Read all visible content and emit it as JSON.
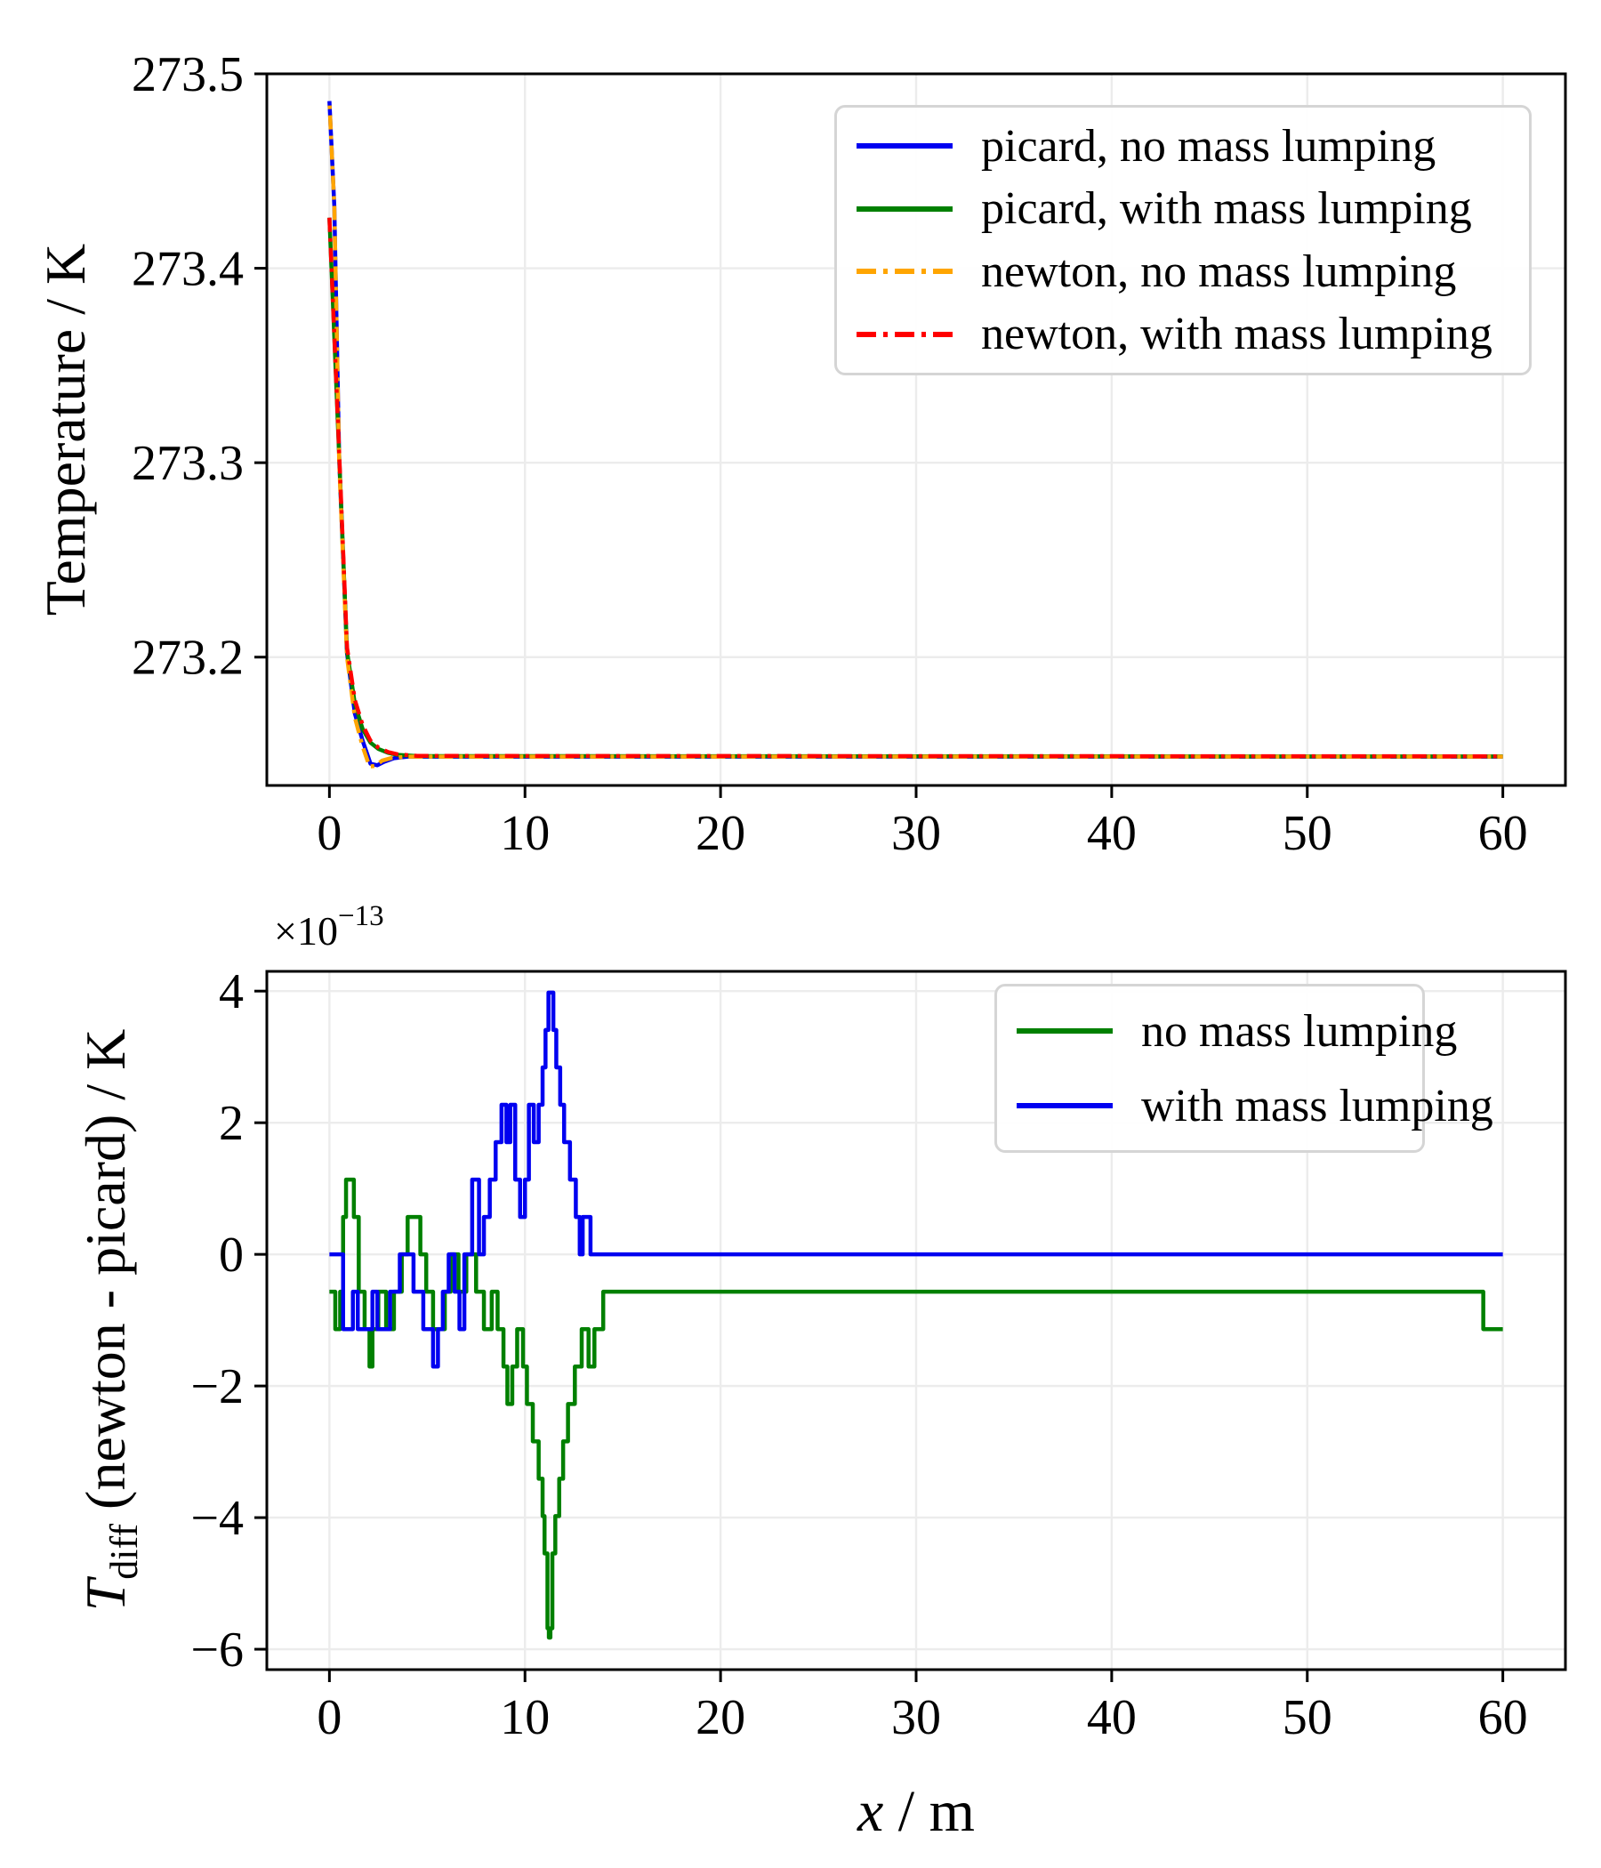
{
  "colors": {
    "blue": "#0000f0",
    "green": "#008000",
    "orange": "#ffa500",
    "red": "#ff0000",
    "grid": "#ececec",
    "spine": "#000000",
    "legend_border": "#d5d5d5",
    "text": "#000000",
    "background": "#ffffff"
  },
  "chart_data": [
    {
      "id": "temperature-vs-x",
      "type": "line",
      "title": "",
      "xlabel": "",
      "ylabel": "Temperature / K",
      "xlim": [
        -3.2,
        63.2
      ],
      "ylim": [
        273.134,
        273.5
      ],
      "grid": true,
      "legend_position": "upper right",
      "xticks": {
        "values": [
          0,
          10,
          20,
          30,
          40,
          50,
          60
        ],
        "labels": [
          "0",
          "10",
          "20",
          "30",
          "40",
          "50",
          "60"
        ]
      },
      "yticks": {
        "values": [
          273.2,
          273.3,
          273.4,
          273.5
        ],
        "labels": [
          "273.2",
          "273.3",
          "273.4",
          "273.5"
        ]
      },
      "series": [
        {
          "name": "picard, no mass lumping",
          "color_key": "blue",
          "style": "solid",
          "points": [
            [
              0,
              273.486
            ],
            [
              0.25,
              273.432
            ],
            [
              0.5,
              273.302
            ],
            [
              0.9,
              273.202
            ],
            [
              1.3,
              273.171
            ],
            [
              1.7,
              273.157
            ],
            [
              2.1,
              273.1452
            ],
            [
              2.45,
              273.1444
            ],
            [
              2.8,
              273.1462
            ],
            [
              3.3,
              273.148
            ],
            [
              4,
              273.1488
            ],
            [
              60,
              273.1488
            ]
          ]
        },
        {
          "name": "picard, with mass lumping",
          "color_key": "green",
          "style": "solid",
          "points": [
            [
              0,
              273.426
            ],
            [
              0.5,
              273.303
            ],
            [
              0.9,
              273.203
            ],
            [
              1.3,
              273.176
            ],
            [
              1.7,
              273.163
            ],
            [
              2.1,
              273.156
            ],
            [
              2.5,
              273.1528
            ],
            [
              3,
              273.1508
            ],
            [
              3.5,
              273.1497
            ],
            [
              4.5,
              273.1491
            ],
            [
              60,
              273.1489
            ]
          ]
        },
        {
          "name": "newton, no mass lumping",
          "color_key": "orange",
          "style": "dashdot",
          "points": [
            [
              0,
              273.486
            ],
            [
              0.25,
              273.432
            ],
            [
              0.5,
              273.3
            ],
            [
              0.9,
              273.2
            ],
            [
              1.3,
              273.169
            ],
            [
              1.7,
              273.154
            ],
            [
              2.05,
              273.1437
            ],
            [
              2.35,
              273.1441
            ],
            [
              2.7,
              273.1468
            ],
            [
              3.2,
              273.1482
            ],
            [
              4,
              273.1488
            ],
            [
              60,
              273.1488
            ]
          ]
        },
        {
          "name": "newton, with mass lumping",
          "color_key": "red",
          "style": "dashdot",
          "points": [
            [
              0,
              273.426
            ],
            [
              0.5,
              273.305
            ],
            [
              0.9,
              273.205
            ],
            [
              1.3,
              273.178
            ],
            [
              1.7,
              273.165
            ],
            [
              2.1,
              273.157
            ],
            [
              2.5,
              273.1535
            ],
            [
              3,
              273.1512
            ],
            [
              3.5,
              273.15
            ],
            [
              4.5,
              273.1492
            ],
            [
              60,
              273.149
            ]
          ]
        }
      ]
    },
    {
      "id": "tdiff-vs-x",
      "type": "line",
      "interpolation": "step",
      "title": "",
      "xlabel_parts": {
        "var": "x",
        "rest": " / m"
      },
      "ylabel_parts": {
        "var": "T",
        "sub": "diff",
        "rest": " (newton - picard) / K"
      },
      "offset_text": {
        "base": "×10",
        "exp": "−13"
      },
      "y_unit_scale": "1e-13",
      "xlim": [
        -3.2,
        63.2
      ],
      "ylim": [
        -6.31,
        4.3
      ],
      "grid": true,
      "legend_position": "upper right",
      "xticks": {
        "values": [
          0,
          10,
          20,
          30,
          40,
          50,
          60
        ],
        "labels": [
          "0",
          "10",
          "20",
          "30",
          "40",
          "50",
          "60"
        ]
      },
      "yticks": {
        "values": [
          -6,
          -4,
          -2,
          0,
          2,
          4
        ],
        "labels": [
          "−6",
          "−4",
          "−2",
          "0",
          "2",
          "4"
        ]
      },
      "series": [
        {
          "name": "no mass lumping",
          "color_key": "green",
          "style": "solid",
          "step_points": [
            [
              0,
              -0.568
            ],
            [
              0.3,
              -1.136
            ],
            [
              0.55,
              -0.568
            ],
            [
              0.7,
              0.568
            ],
            [
              0.85,
              1.136
            ],
            [
              1.25,
              0.568
            ],
            [
              1.5,
              -0.568
            ],
            [
              1.8,
              -1.136
            ],
            [
              2.05,
              -1.705
            ],
            [
              2.2,
              -1.136
            ],
            [
              2.5,
              -0.568
            ],
            [
              2.9,
              -1.136
            ],
            [
              3.3,
              -0.568
            ],
            [
              3.7,
              0
            ],
            [
              4,
              0.568
            ],
            [
              4.65,
              0
            ],
            [
              4.95,
              -0.568
            ],
            [
              5.3,
              -1.136
            ],
            [
              5.9,
              -0.568
            ],
            [
              6.2,
              0
            ],
            [
              6.6,
              -0.568
            ],
            [
              7,
              0
            ],
            [
              7.5,
              -0.568
            ],
            [
              7.9,
              -1.136
            ],
            [
              8.3,
              -0.568
            ],
            [
              8.6,
              -1.136
            ],
            [
              8.9,
              -1.705
            ],
            [
              9.1,
              -2.273
            ],
            [
              9.35,
              -1.705
            ],
            [
              9.6,
              -1.136
            ],
            [
              9.9,
              -1.705
            ],
            [
              10.1,
              -2.273
            ],
            [
              10.4,
              -2.841
            ],
            [
              10.7,
              -3.409
            ],
            [
              10.9,
              -3.977
            ],
            [
              11,
              -4.545
            ],
            [
              11.15,
              -5.682
            ],
            [
              11.22,
              -5.823
            ],
            [
              11.3,
              -5.682
            ],
            [
              11.4,
              -4.545
            ],
            [
              11.55,
              -3.977
            ],
            [
              11.75,
              -3.409
            ],
            [
              11.95,
              -2.841
            ],
            [
              12.2,
              -2.273
            ],
            [
              12.55,
              -1.705
            ],
            [
              12.9,
              -1.136
            ],
            [
              13.25,
              -1.705
            ],
            [
              13.55,
              -1.136
            ],
            [
              14,
              -0.568
            ],
            [
              59,
              -1.136
            ],
            [
              60,
              -1.136
            ]
          ]
        },
        {
          "name": "with mass lumping",
          "color_key": "blue",
          "style": "solid",
          "step_points": [
            [
              0,
              0
            ],
            [
              0.7,
              -1.136
            ],
            [
              1.2,
              -0.568
            ],
            [
              1.45,
              -1.136
            ],
            [
              2.2,
              -0.568
            ],
            [
              2.45,
              -1.136
            ],
            [
              3.1,
              -0.568
            ],
            [
              3.6,
              0
            ],
            [
              4.3,
              -0.568
            ],
            [
              4.8,
              -1.136
            ],
            [
              5.3,
              -1.705
            ],
            [
              5.55,
              -1.136
            ],
            [
              5.8,
              -0.568
            ],
            [
              6.1,
              0
            ],
            [
              6.4,
              -0.568
            ],
            [
              6.65,
              -1.136
            ],
            [
              6.9,
              0
            ],
            [
              7.3,
              1.136
            ],
            [
              7.65,
              0
            ],
            [
              7.9,
              0.568
            ],
            [
              8.2,
              1.136
            ],
            [
              8.5,
              1.705
            ],
            [
              8.8,
              2.273
            ],
            [
              9.05,
              1.705
            ],
            [
              9.25,
              2.273
            ],
            [
              9.5,
              1.136
            ],
            [
              9.75,
              0.568
            ],
            [
              10,
              1.136
            ],
            [
              10.2,
              2.273
            ],
            [
              10.45,
              1.705
            ],
            [
              10.7,
              2.273
            ],
            [
              10.9,
              2.841
            ],
            [
              11.05,
              3.409
            ],
            [
              11.2,
              3.977
            ],
            [
              11.45,
              3.409
            ],
            [
              11.6,
              2.841
            ],
            [
              11.8,
              2.273
            ],
            [
              12,
              1.705
            ],
            [
              12.3,
              1.136
            ],
            [
              12.6,
              0.568
            ],
            [
              12.8,
              0
            ],
            [
              12.95,
              0.568
            ],
            [
              13.35,
              0
            ],
            [
              60,
              0
            ]
          ]
        }
      ]
    }
  ]
}
